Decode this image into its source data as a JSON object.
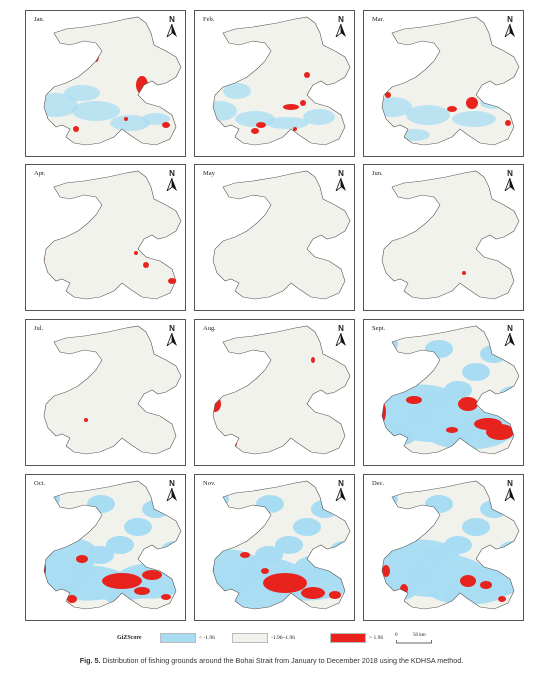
{
  "panels": [
    {
      "label": "Jan.",
      "level": 1
    },
    {
      "label": "Feb.",
      "level": 1
    },
    {
      "label": "Mar.",
      "level": 1
    },
    {
      "label": "Apr.",
      "level": 0
    },
    {
      "label": "May",
      "level": 0
    },
    {
      "label": "Jun.",
      "level": 0
    },
    {
      "label": "Jul.",
      "level": 0
    },
    {
      "label": "Aug.",
      "level": 0
    },
    {
      "label": "Sept.",
      "level": 2
    },
    {
      "label": "Oct.",
      "level": 2
    },
    {
      "label": "Nov.",
      "level": 2
    },
    {
      "label": "Dec.",
      "level": 2
    }
  ],
  "north_label": "N",
  "legend": {
    "title": "GiZScore",
    "items": [
      {
        "label": "< -1.96",
        "color": "#a8dcf3"
      },
      {
        "label": "-1.96~1.96",
        "color": "#f2f2ec"
      },
      {
        "label": "> 1.96",
        "color": "#e8231e"
      }
    ]
  },
  "scale_bar": {
    "zero": "0",
    "label": "50 km"
  },
  "caption": {
    "prefix": "Fig. 5.",
    "text": " Distribution of fishing grounds around the Bohai Strait from January to December 2018 using the KDHSA method."
  },
  "colors": {
    "land_sea": "#f2f2ec",
    "cold": "#a8dcf3",
    "hot": "#e8231e",
    "coast": "#555555"
  }
}
